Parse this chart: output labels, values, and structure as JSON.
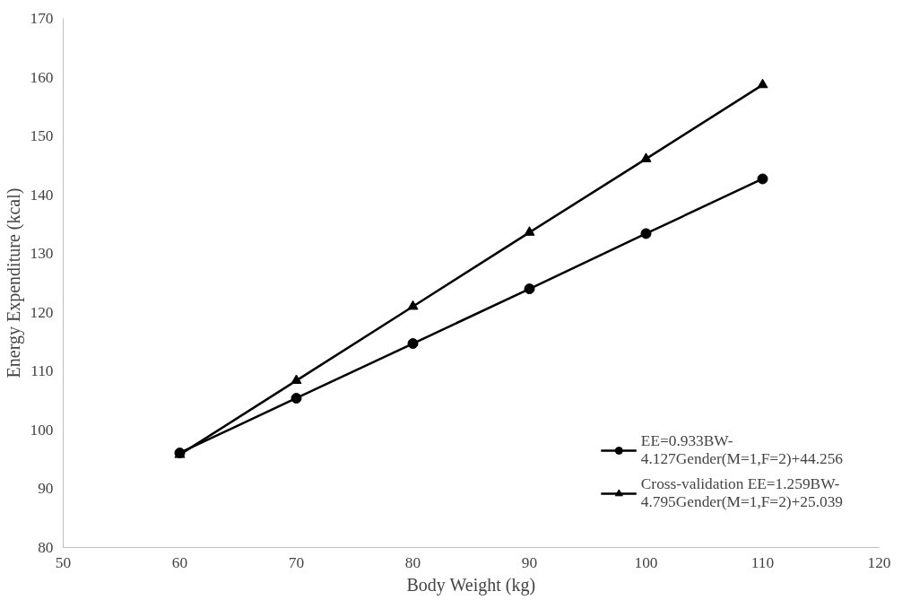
{
  "chart_data": {
    "type": "line",
    "xlabel": "Body Weight (kg)",
    "ylabel": "Energy Expenditure (kcal)",
    "x": [
      60,
      70,
      80,
      90,
      100,
      110
    ],
    "series": [
      {
        "name": "EE=0.933BW-4.127Gender(M=1,F=2)+44.256",
        "color": "#000000",
        "marker": "circle",
        "values": [
          96.1,
          105.4,
          114.7,
          124.0,
          133.4,
          142.7
        ]
      },
      {
        "name": "Cross-validation EE=1.259BW-4.795Gender(M=1,F=2)+25.039",
        "color": "#000000",
        "marker": "triangle",
        "values": [
          95.8,
          108.4,
          121.0,
          133.6,
          146.1,
          158.7
        ]
      }
    ],
    "xlim": [
      50,
      120
    ],
    "xticks": [
      50,
      60,
      70,
      80,
      90,
      100,
      110,
      120
    ],
    "ylim": [
      80,
      170
    ],
    "yticks": [
      80,
      90,
      100,
      110,
      120,
      130,
      140,
      150,
      160,
      170
    ],
    "grid": false,
    "legend": "bottom right",
    "line_style": "solid"
  }
}
